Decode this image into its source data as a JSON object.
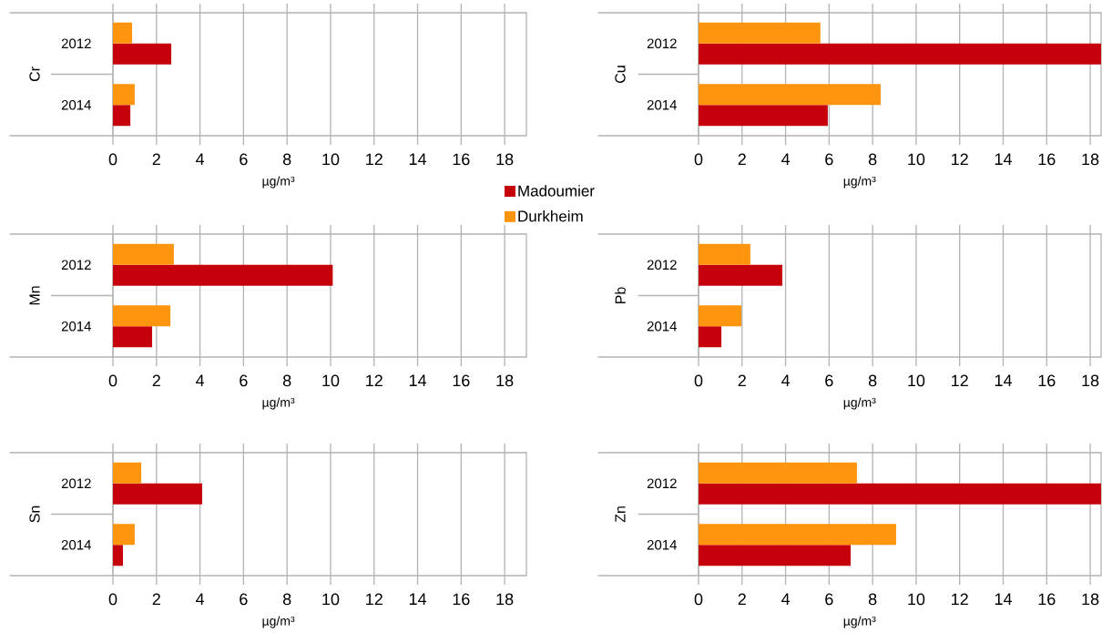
{
  "chart_data": [
    {
      "type": "bar",
      "orientation": "horizontal",
      "ylabel": "Cr",
      "xlabel": "µg/m³",
      "categories": [
        "2012",
        "2014"
      ],
      "xlim": [
        0,
        19
      ],
      "xticks": [
        0,
        2,
        4,
        6,
        8,
        10,
        12,
        14,
        16,
        18
      ],
      "grid": "x",
      "legend": "bottom right",
      "series": [
        {
          "name": "Madoumier",
          "color": "#c5000b",
          "values": [
            2.68,
            0.8
          ]
        },
        {
          "name": "Durkheim",
          "color": "#ff950e",
          "values": [
            0.88,
            1.0
          ]
        }
      ]
    },
    {
      "type": "bar",
      "orientation": "horizontal",
      "ylabel": "Cu",
      "xlabel": "µg/m³",
      "categories": [
        "2012",
        "2014"
      ],
      "xlim": [
        0,
        18.5
      ],
      "xticks": [
        0,
        2,
        4,
        6,
        8,
        10,
        12,
        14,
        16,
        18
      ],
      "grid": "x",
      "series": [
        {
          "color": "#c5000b",
          "values": [
            18.5,
            5.94
          ]
        },
        {
          "color": "#ff950e",
          "values": [
            5.6,
            8.37
          ]
        }
      ]
    },
    {
      "type": "bar",
      "orientation": "horizontal",
      "ylabel": "Mn",
      "xlabel": "µg/m³",
      "categories": [
        "2012",
        "2014"
      ],
      "xlim": [
        0,
        19
      ],
      "xticks": [
        0,
        2,
        4,
        6,
        8,
        10,
        12,
        14,
        16,
        18
      ],
      "grid": "x",
      "series": [
        {
          "color": "#c5000b",
          "values": [
            10.1,
            1.8
          ]
        },
        {
          "color": "#ff950e",
          "values": [
            2.8,
            2.64
          ]
        }
      ]
    },
    {
      "type": "bar",
      "orientation": "horizontal",
      "ylabel": "Pb",
      "xlabel": "µg/m³",
      "categories": [
        "2012",
        "2014"
      ],
      "xlim": [
        0,
        18.5
      ],
      "xticks": [
        0,
        2,
        4,
        6,
        8,
        10,
        12,
        14,
        16,
        18
      ],
      "grid": "x",
      "series": [
        {
          "color": "#c5000b",
          "values": [
            3.85,
            1.05
          ]
        },
        {
          "color": "#ff950e",
          "values": [
            2.38,
            1.97
          ]
        }
      ]
    },
    {
      "type": "bar",
      "orientation": "horizontal",
      "ylabel": "Sn",
      "xlabel": "µg/m³",
      "categories": [
        "2012",
        "2014"
      ],
      "xlim": [
        0,
        19
      ],
      "xticks": [
        0,
        2,
        4,
        6,
        8,
        10,
        12,
        14,
        16,
        18
      ],
      "grid": "x",
      "series": [
        {
          "color": "#c5000b",
          "values": [
            4.1,
            0.46
          ]
        },
        {
          "color": "#ff950e",
          "values": [
            1.3,
            1.0
          ]
        }
      ]
    },
    {
      "type": "bar",
      "orientation": "horizontal",
      "ylabel": "Zn",
      "xlabel": "µg/m³",
      "categories": [
        "2012",
        "2014"
      ],
      "xlim": [
        0,
        18.5
      ],
      "xticks": [
        0,
        2,
        4,
        6,
        8,
        10,
        12,
        14,
        16,
        18
      ],
      "grid": "x",
      "series": [
        {
          "color": "#c5000b",
          "values": [
            18.5,
            6.99
          ]
        },
        {
          "color": "#ff950e",
          "values": [
            7.28,
            9.08
          ]
        }
      ]
    }
  ]
}
